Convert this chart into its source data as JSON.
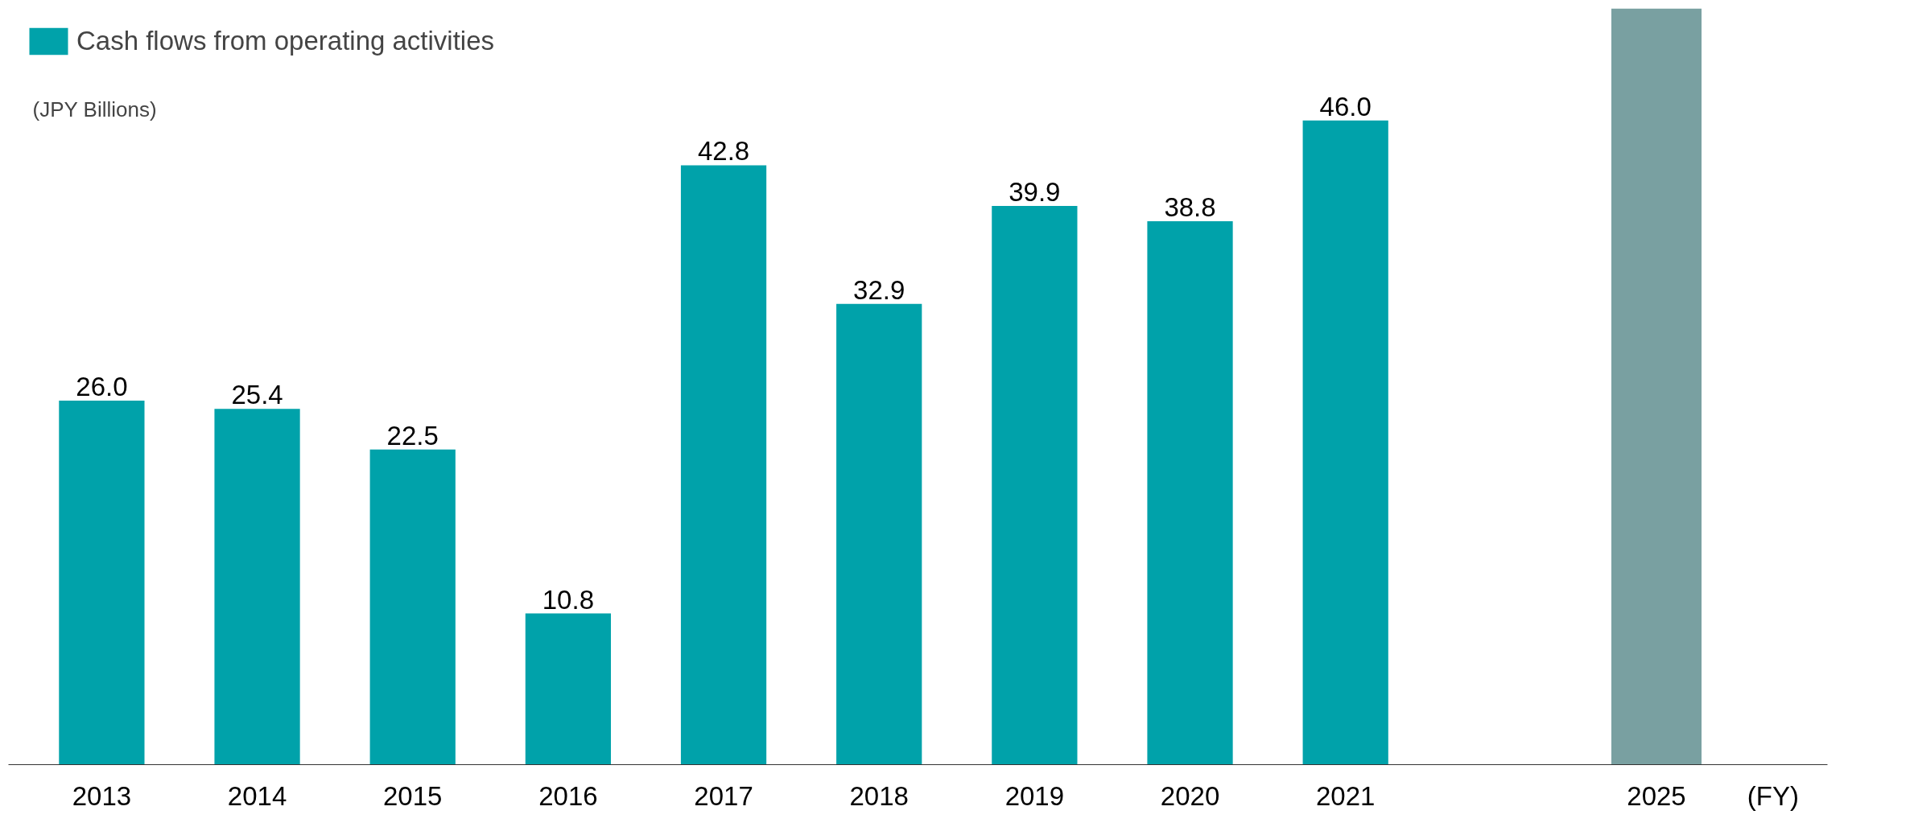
{
  "chart_data": {
    "type": "bar",
    "categories": [
      "2013",
      "2014",
      "2015",
      "2016",
      "2017",
      "2018",
      "2019",
      "2020",
      "2021",
      null,
      "2025"
    ],
    "series": [
      {
        "name": "Cash flows from operating activities",
        "color": "#00a2aa",
        "values": [
          26.0,
          25.4,
          22.5,
          10.8,
          42.8,
          32.9,
          39.9,
          38.8,
          46.0,
          null,
          null
        ],
        "value_labels": [
          "26.0",
          "25.4",
          "22.5",
          "10.8",
          "42.8",
          "32.9",
          "39.9",
          "38.8",
          "46.0",
          null,
          null
        ]
      }
    ],
    "ylim": [
      0,
      54
    ],
    "tick_labels": "x",
    "data_labels": true,
    "legend": "top left",
    "grid": false,
    "bands": [
      {
        "axis": "x",
        "from": "2025",
        "to": "2025",
        "color": "#0b5253"
      }
    ],
    "annotations": [
      "(JPY Billions)",
      "(FY)"
    ]
  }
}
